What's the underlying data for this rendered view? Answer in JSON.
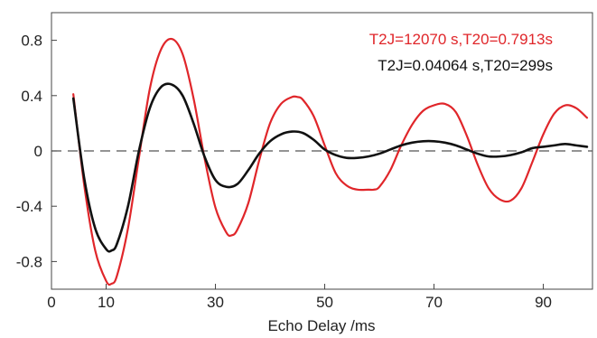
{
  "chart_data": {
    "type": "line",
    "title": "",
    "xlabel": "Echo Delay /ms",
    "ylabel": "",
    "xlim": [
      0,
      99
    ],
    "ylim": [
      -1.0,
      1.0
    ],
    "x_ticks": [
      0,
      10,
      30,
      50,
      70,
      90
    ],
    "y_ticks": [
      0.8,
      0.4,
      0,
      -0.4,
      -0.8
    ],
    "y_tick_labels": [
      "0.8",
      "0.4",
      "0",
      "-0.4",
      "-0.8"
    ],
    "zero_line": "dashed",
    "grid": false,
    "legend_position": "top-right",
    "series": [
      {
        "name": "T2J=12070 s,T20=0.7913s",
        "color": "#e0262a",
        "x": [
          4,
          6,
          8,
          10,
          11,
          12,
          14,
          16,
          18,
          20,
          22,
          24,
          26,
          28,
          30,
          32,
          33,
          34,
          36,
          38,
          40,
          42,
          44,
          45,
          46,
          48,
          50,
          52,
          54,
          56,
          58,
          59,
          60,
          62,
          64,
          66,
          68,
          70,
          72,
          74,
          76,
          78,
          80,
          82,
          84,
          86,
          88,
          90,
          92,
          94,
          96,
          98
        ],
        "y": [
          0.41,
          -0.25,
          -0.72,
          -0.94,
          -0.96,
          -0.9,
          -0.56,
          -0.05,
          0.45,
          0.73,
          0.81,
          0.7,
          0.38,
          -0.05,
          -0.41,
          -0.59,
          -0.61,
          -0.57,
          -0.38,
          -0.07,
          0.2,
          0.34,
          0.39,
          0.39,
          0.37,
          0.25,
          0.04,
          -0.16,
          -0.25,
          -0.28,
          -0.28,
          -0.28,
          -0.26,
          -0.14,
          0.04,
          0.19,
          0.29,
          0.33,
          0.34,
          0.28,
          0.11,
          -0.1,
          -0.27,
          -0.35,
          -0.36,
          -0.27,
          -0.08,
          0.12,
          0.27,
          0.33,
          0.31,
          0.24
        ]
      },
      {
        "name": "T2J=0.04064 s,T20=299s",
        "color": "#111111",
        "x": [
          4,
          6,
          8,
          10,
          11,
          12,
          14,
          16,
          18,
          20,
          22,
          24,
          26,
          28,
          30,
          32,
          34,
          36,
          38,
          40,
          42,
          44,
          46,
          48,
          50,
          52,
          54,
          56,
          58,
          60,
          62,
          64,
          66,
          68,
          70,
          72,
          74,
          76,
          78,
          80,
          82,
          84,
          86,
          88,
          90,
          92,
          94,
          96,
          98
        ],
        "y": [
          0.38,
          -0.2,
          -0.56,
          -0.71,
          -0.72,
          -0.67,
          -0.4,
          0.0,
          0.31,
          0.46,
          0.48,
          0.4,
          0.2,
          -0.04,
          -0.21,
          -0.26,
          -0.24,
          -0.14,
          -0.02,
          0.07,
          0.12,
          0.14,
          0.13,
          0.08,
          0.01,
          -0.03,
          -0.05,
          -0.05,
          -0.04,
          -0.02,
          0.01,
          0.04,
          0.06,
          0.07,
          0.07,
          0.06,
          0.04,
          0.01,
          -0.02,
          -0.04,
          -0.04,
          -0.03,
          -0.01,
          0.02,
          0.03,
          0.04,
          0.05,
          0.04,
          0.03
        ]
      }
    ]
  }
}
